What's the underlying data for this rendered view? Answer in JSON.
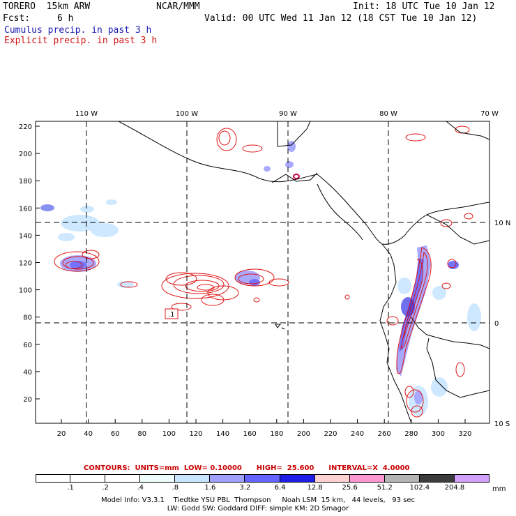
{
  "header": {
    "model": "TORERO  15km ARW",
    "org": "NCAR/MMM",
    "init": "Init: 18 UTC Tue 10 Jan 12",
    "fcst_label": "Fcst:",
    "fcst_value": "6 h",
    "valid": "Valid: 00 UTC Wed 11 Jan 12 (18 CST Tue 10 Jan 12)",
    "field1": "Cumulus precip. in past 3 h",
    "field2": "Explicit precip. in past 3 h"
  },
  "map": {
    "lon_labels": [
      "110 W",
      "100 W",
      "90 W",
      "80 W",
      "70 W"
    ],
    "lat_labels": [
      "10 N",
      "0",
      "10 S"
    ],
    "y_ticks": [
      "220",
      "200",
      "180",
      "160",
      "140",
      "120",
      "100",
      "80",
      "60",
      "40",
      "20"
    ],
    "x_ticks": [
      "20",
      "40",
      "60",
      "80",
      "100",
      "120",
      "140",
      "160",
      "180",
      "200",
      "220",
      "240",
      "260",
      "280",
      "300",
      "320"
    ],
    "contour_label": ".1"
  },
  "contours": {
    "text": "CONTOURS:  UNITS=mm  LOW= 0.10000      HIGH=  25.600      INTERVAL=X  4.0000"
  },
  "colorbar": {
    "unit": "mm",
    "labels": [
      ".1",
      ".2",
      ".4",
      ".8",
      "1.6",
      "3.2",
      "6.4",
      "12.8",
      "25.6",
      "51.2",
      "102.4",
      "204.8"
    ],
    "colors": [
      "#ffffff",
      "#ffffff",
      "#ffffff",
      "#eefcfc",
      "#c8e6ff",
      "#a0a0ff",
      "#6464ff",
      "#1e1ee6",
      "#ffd2d2",
      "#ff96d2",
      "#b4b4b4",
      "#3c3c3c",
      "#d2a0ff"
    ]
  },
  "model_info": {
    "line1": "Model Info: V3.3.1    Tiedtke YSU PBL  Thompson     Noah LSM  15 km,   44 levels,   93 sec",
    "line2": "LW: Godd SW: Goddard DIFF: simple KM: 2D Smagor"
  }
}
